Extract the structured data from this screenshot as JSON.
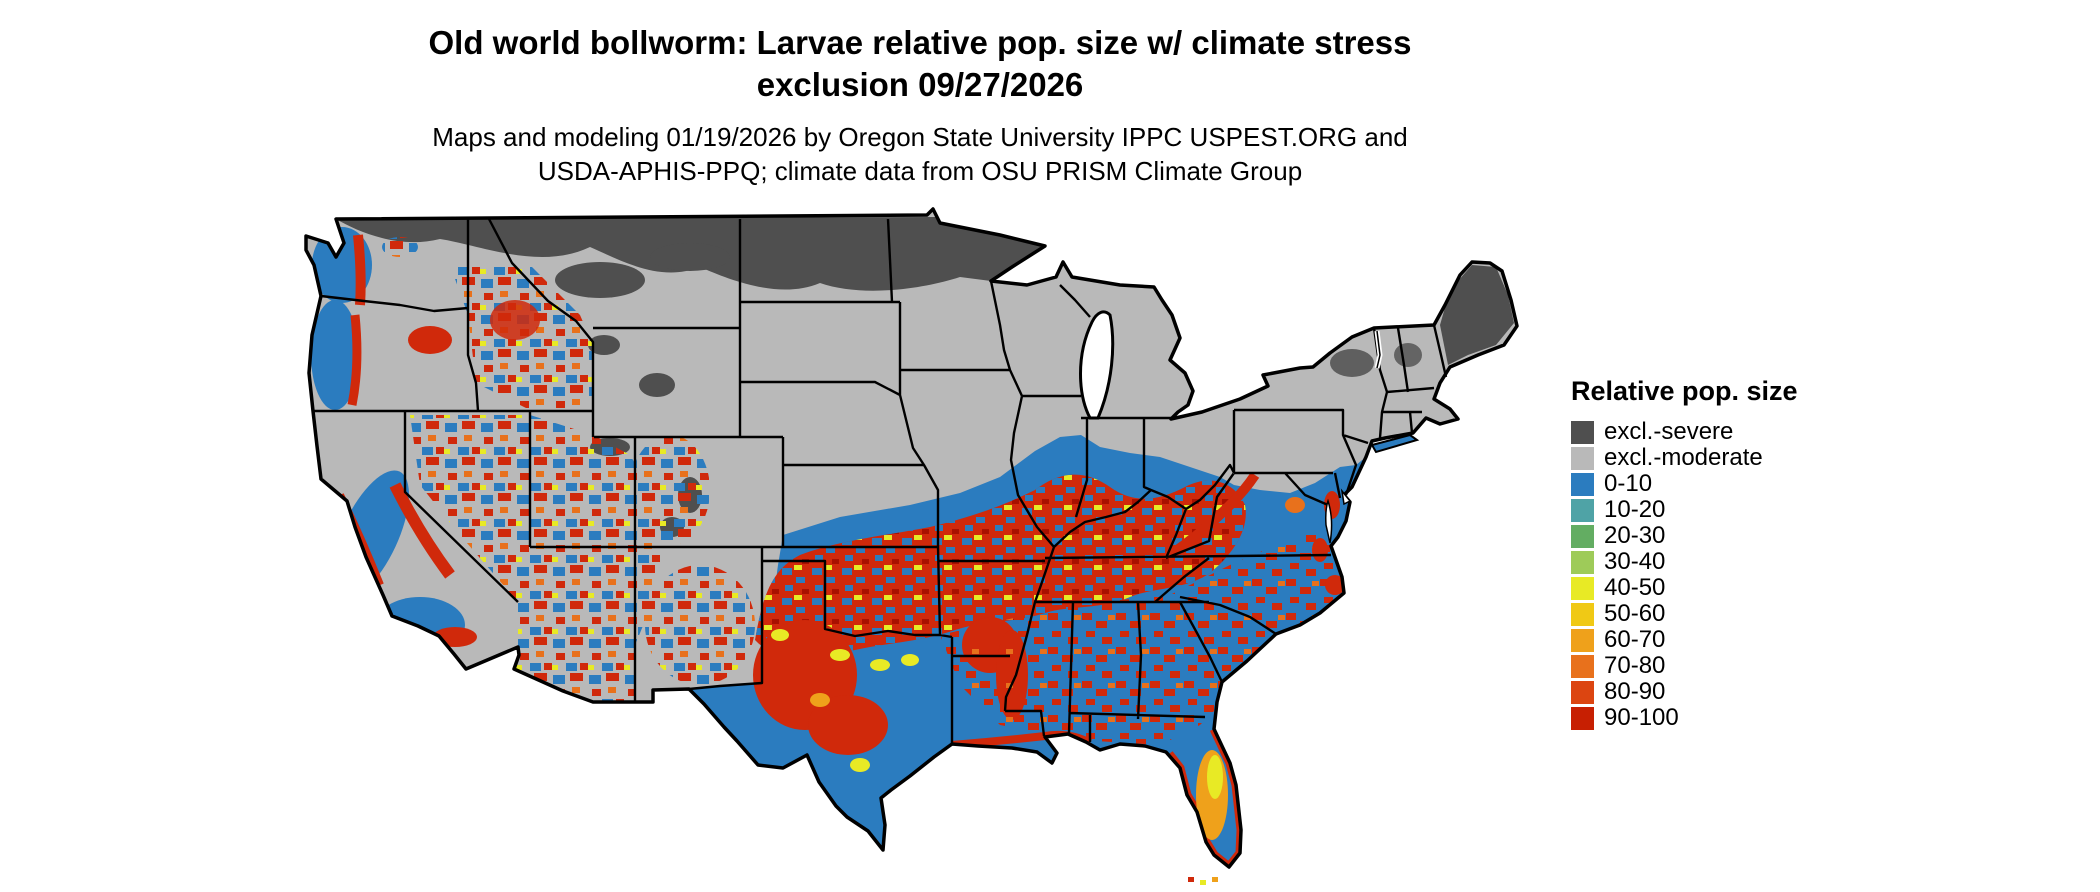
{
  "figure": {
    "title_line1": "Old world bollworm: Larvae relative pop. size w/ climate stress",
    "title_line2": "exclusion 09/27/2026",
    "subtitle_line1": "Maps and modeling 01/19/2026 by Oregon State University IPPC USPEST.ORG and",
    "subtitle_line2": "USDA-APHIS-PPQ; climate data from OSU PRISM Climate Group"
  },
  "legend": {
    "title": "Relative pop. size",
    "entries": [
      {
        "label": "excl.-severe",
        "color": "#4f4f4f"
      },
      {
        "label": "excl.-moderate",
        "color": "#b9b9b9"
      },
      {
        "label": "0-10",
        "color": "#2b7cbf"
      },
      {
        "label": "10-20",
        "color": "#4fa3a6"
      },
      {
        "label": "20-30",
        "color": "#63ad62"
      },
      {
        "label": "30-40",
        "color": "#9ecb59"
      },
      {
        "label": "40-50",
        "color": "#e8ea25"
      },
      {
        "label": "50-60",
        "color": "#f0c915"
      },
      {
        "label": "60-70",
        "color": "#efa11b"
      },
      {
        "label": "70-80",
        "color": "#e8711c"
      },
      {
        "label": "80-90",
        "color": "#dc4511"
      },
      {
        "label": "90-100",
        "color": "#c71f02"
      }
    ]
  }
}
